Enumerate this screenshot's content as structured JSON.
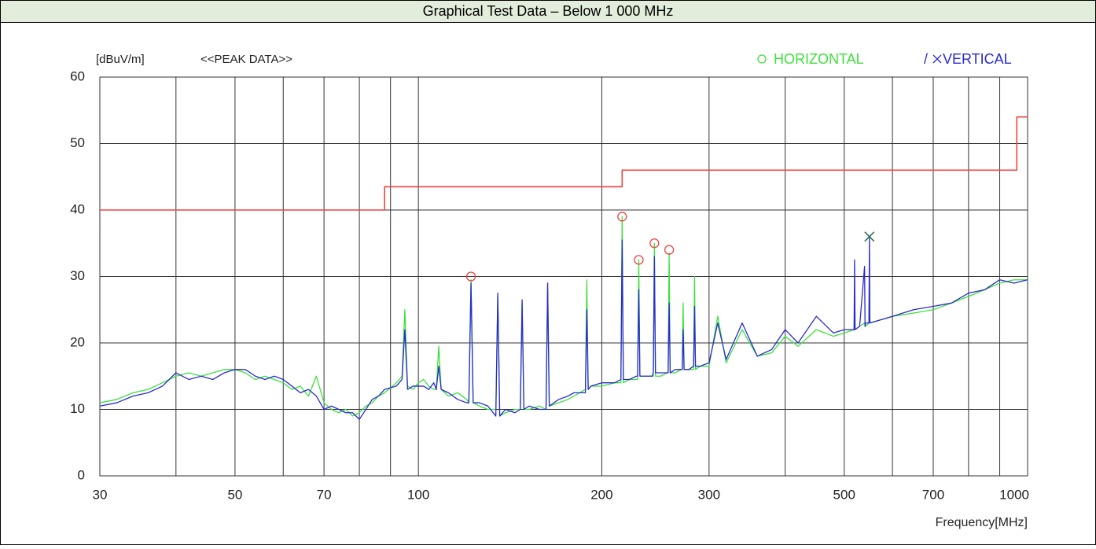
{
  "chart_data": {
    "type": "line",
    "title": "Graphical Test Data – Below 1 000 MHz",
    "subtitle": "<<PEAK DATA>>",
    "y_label": "[dBuV/m]",
    "x_label": "Frequency[MHz]",
    "log_x": true,
    "grid": true,
    "legend_separator": "/",
    "xlim": [
      30,
      1000
    ],
    "ylim": [
      0,
      60
    ],
    "xticks": [
      30,
      50,
      70,
      100,
      200,
      300,
      500,
      700,
      1000
    ],
    "xminor": [
      40,
      60,
      80,
      90,
      400,
      600,
      800,
      900
    ],
    "yticks": [
      0,
      10,
      20,
      30,
      40,
      50,
      60
    ],
    "x": [
      30,
      32,
      34,
      36,
      38,
      40,
      42,
      44,
      46,
      48,
      50,
      52,
      54,
      56,
      58,
      60,
      62,
      64,
      66,
      68,
      70,
      72,
      74,
      76,
      78,
      80,
      82,
      84,
      86,
      88,
      92,
      94,
      95,
      96,
      98,
      100,
      102,
      104,
      106,
      107,
      108,
      109,
      112,
      116,
      120,
      121,
      122,
      123,
      126,
      130,
      134,
      135,
      136,
      139,
      144,
      147,
      148,
      149,
      152,
      158,
      162,
      163,
      164,
      170,
      176,
      180,
      188,
      189,
      190,
      192,
      200,
      210,
      215,
      216,
      217,
      222,
      228,
      229,
      230,
      231,
      236,
      242,
      243,
      244,
      245,
      250,
      256,
      257,
      258,
      259,
      264,
      270,
      271,
      272,
      273,
      278,
      283,
      284,
      285,
      290,
      300,
      310,
      320,
      340,
      360,
      380,
      400,
      420,
      450,
      480,
      500,
      519,
      520,
      521,
      530,
      540,
      541,
      542,
      549,
      550,
      551,
      600,
      650,
      700,
      750,
      800,
      850,
      900,
      950,
      1000
    ],
    "series": [
      {
        "name": "HORIZONTAL",
        "color": "#3ce03c",
        "values": [
          11,
          11.5,
          12.5,
          13,
          14,
          15,
          15.5,
          15,
          15.5,
          16,
          16,
          15.5,
          14.5,
          15,
          14.5,
          14,
          13,
          13.5,
          12,
          15,
          11,
          10,
          9.5,
          10,
          9,
          9.5,
          10.5,
          11,
          12,
          12.5,
          14,
          15,
          25,
          13.5,
          13,
          14,
          14.5,
          13.5,
          13,
          13,
          19.5,
          13,
          12,
          12.5,
          11.5,
          11,
          29.5,
          11,
          10.5,
          10,
          10,
          27,
          9,
          9.5,
          10,
          10,
          26,
          10,
          10,
          10.5,
          10,
          28.5,
          10.5,
          11,
          11.5,
          12,
          13,
          29.5,
          13,
          13.5,
          13.5,
          14,
          14,
          39,
          14,
          14.5,
          14.5,
          14.5,
          32.5,
          15,
          15,
          15,
          15,
          35,
          15,
          15,
          15.5,
          15.5,
          33.5,
          15.5,
          15.5,
          16,
          16,
          26,
          16,
          16,
          16,
          30,
          16,
          16.5,
          16.5,
          24,
          17,
          22,
          18,
          18.5,
          21,
          19.5,
          22,
          21,
          21.5,
          22,
          25,
          22,
          22.5,
          23,
          22.5,
          22.5,
          23,
          28,
          23,
          24,
          24.5,
          25,
          26,
          27,
          28,
          29,
          29.5,
          29.5
        ]
      },
      {
        "name": "VERTICAL",
        "color": "#2a2ad0",
        "values": [
          10.5,
          11,
          12,
          12.5,
          13.5,
          15.5,
          14.5,
          15,
          14.5,
          15.5,
          16,
          16,
          15,
          14.5,
          15,
          14.5,
          13.5,
          12.5,
          13,
          12,
          10,
          10.5,
          10,
          9.5,
          9.5,
          8.5,
          10,
          11.5,
          12,
          13,
          13.5,
          14.5,
          22,
          13,
          13.5,
          13.5,
          13.5,
          13,
          14,
          13,
          16.5,
          13,
          12.5,
          11.5,
          11,
          11,
          29,
          11,
          11,
          10.5,
          9,
          27.5,
          9,
          10,
          9.5,
          10,
          26.5,
          10,
          10.5,
          10,
          10,
          29,
          10.5,
          11.5,
          12,
          12.5,
          12.5,
          25,
          13,
          13.5,
          14,
          14,
          14.5,
          35.5,
          14.5,
          14.5,
          15,
          15,
          28,
          15,
          15,
          15,
          15.5,
          33,
          15.5,
          15.5,
          15.5,
          15.5,
          26,
          15.5,
          16,
          16,
          16,
          22,
          16,
          16,
          16.5,
          25.5,
          16.5,
          16.5,
          17,
          23,
          17.5,
          23,
          18,
          19,
          22,
          20,
          24,
          21.5,
          22,
          22,
          32.5,
          22,
          22.5,
          31.5,
          22.5,
          23,
          23,
          36,
          23,
          24,
          25,
          25.5,
          26,
          27.5,
          28,
          29.5,
          29,
          29.5
        ]
      }
    ],
    "limit_line": {
      "color": "#ee4444",
      "x": [
        30,
        88,
        88,
        216,
        216,
        960,
        960,
        1000
      ],
      "values": [
        40,
        40,
        43.5,
        43.5,
        46,
        46,
        54,
        54
      ]
    },
    "horizontal_peaks": {
      "color": "#ee4444",
      "x": [
        122,
        216,
        230,
        244,
        258
      ],
      "values": [
        30,
        39,
        32.5,
        35,
        34
      ]
    },
    "vertical_peaks": {
      "color": "#2e6e4e",
      "x": [
        550
      ],
      "values": [
        36
      ]
    }
  }
}
